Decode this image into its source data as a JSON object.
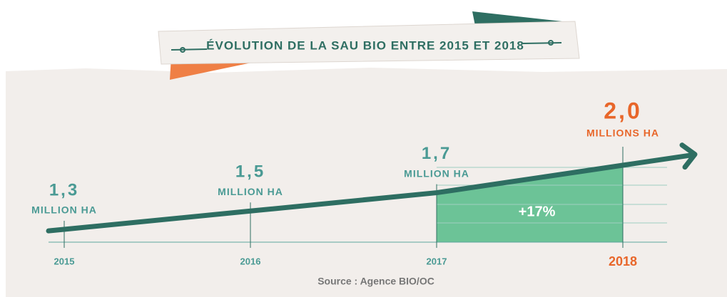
{
  "chart_data": {
    "type": "line",
    "title": "ÉVOLUTION DE LA SAU BIO ENTRE 2015 ET 2018",
    "categories": [
      "2015",
      "2016",
      "2017",
      "2018"
    ],
    "values": [
      1.3,
      1.5,
      1.7,
      2.0
    ],
    "value_labels": [
      "1,3",
      "1,5",
      "1,7",
      "2,0"
    ],
    "unit_labels": [
      "MILLION HA",
      "MILLION HA",
      "MILLION HA",
      "MILLIONS HA"
    ],
    "label_colors": [
      "#4a9a94",
      "#4a9a94",
      "#4a9a94",
      "#e8662a"
    ],
    "color": "#2e6e62",
    "fill_color": "#6cc397",
    "annotation": "+17%",
    "source": "Source : Agence BIO/OC"
  }
}
